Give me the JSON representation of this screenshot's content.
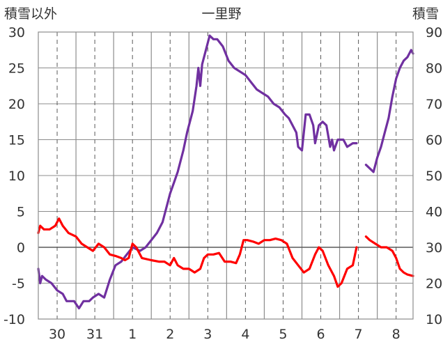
{
  "chart_data": {
    "type": "line",
    "title": "一里野",
    "left_axis_label": "積雪以外",
    "right_axis_label": "積雪",
    "left_axis": {
      "min": -10,
      "max": 30,
      "step": 5,
      "ticks": [
        "-10",
        "-5",
        "0",
        "5",
        "10",
        "15",
        "20",
        "25",
        "30"
      ]
    },
    "right_axis": {
      "min": 10,
      "max": 90,
      "step": 10,
      "ticks": [
        "10",
        "20",
        "30",
        "40",
        "50",
        "60",
        "70",
        "80",
        "90"
      ]
    },
    "x_axis": {
      "min": -1.5,
      "max": 8.45,
      "ticks": [
        {
          "x": -1,
          "label": "30"
        },
        {
          "x": 0,
          "label": "31"
        },
        {
          "x": 1,
          "label": "1"
        },
        {
          "x": 2,
          "label": "2"
        },
        {
          "x": 3,
          "label": "3"
        },
        {
          "x": 4,
          "label": "4"
        },
        {
          "x": 5,
          "label": "5"
        },
        {
          "x": 6,
          "label": "6"
        },
        {
          "x": 7,
          "label": "7"
        },
        {
          "x": 8,
          "label": "8"
        }
      ],
      "day_boundaries": [
        -0.5,
        0.5,
        1.5,
        2.5,
        3.5,
        4.5,
        5.5,
        6.5,
        7.5
      ]
    },
    "grid": {
      "vertical": "dashed",
      "horizontal": "solid"
    },
    "zero_line": 0,
    "series": [
      {
        "axis": "right",
        "color": "#7030a0",
        "segments": [
          [
            [
              -1.5,
              24
            ],
            [
              -1.45,
              20
            ],
            [
              -1.4,
              22
            ],
            [
              -1.3,
              21
            ],
            [
              -1.15,
              20
            ],
            [
              -1.0,
              18
            ],
            [
              -0.85,
              17
            ],
            [
              -0.75,
              15
            ],
            [
              -0.55,
              15
            ],
            [
              -0.42,
              13
            ],
            [
              -0.3,
              15
            ],
            [
              -0.15,
              15
            ],
            [
              -0.05,
              16
            ],
            [
              0.1,
              17
            ],
            [
              0.25,
              16
            ],
            [
              0.4,
              21
            ],
            [
              0.55,
              25
            ],
            [
              0.7,
              26
            ],
            [
              0.85,
              28
            ],
            [
              1.0,
              30
            ],
            [
              1.2,
              29
            ],
            [
              1.35,
              30
            ],
            [
              1.5,
              32
            ],
            [
              1.65,
              34
            ],
            [
              1.8,
              37
            ],
            [
              2.0,
              45
            ],
            [
              2.1,
              48
            ],
            [
              2.2,
              51
            ],
            [
              2.35,
              57
            ],
            [
              2.45,
              62
            ],
            [
              2.6,
              68
            ],
            [
              2.7,
              75
            ],
            [
              2.75,
              80
            ],
            [
              2.8,
              75
            ],
            [
              2.85,
              81
            ],
            [
              2.95,
              85
            ],
            [
              3.05,
              89
            ],
            [
              3.15,
              88
            ],
            [
              3.25,
              88
            ],
            [
              3.4,
              86
            ],
            [
              3.55,
              82
            ],
            [
              3.7,
              80
            ],
            [
              3.85,
              79
            ],
            [
              4.0,
              78
            ],
            [
              4.15,
              76
            ],
            [
              4.3,
              74
            ],
            [
              4.45,
              73
            ],
            [
              4.6,
              72
            ],
            [
              4.75,
              70
            ],
            [
              4.9,
              69
            ],
            [
              5.05,
              67
            ],
            [
              5.15,
              66
            ],
            [
              5.25,
              64
            ],
            [
              5.35,
              62
            ],
            [
              5.4,
              58
            ],
            [
              5.5,
              57
            ],
            [
              5.55,
              62
            ],
            [
              5.6,
              67
            ],
            [
              5.7,
              67
            ],
            [
              5.8,
              64
            ],
            [
              5.85,
              59
            ],
            [
              5.95,
              64
            ],
            [
              6.05,
              65
            ],
            [
              6.15,
              64
            ],
            [
              6.25,
              58
            ],
            [
              6.3,
              60
            ],
            [
              6.35,
              57
            ],
            [
              6.45,
              60
            ],
            [
              6.6,
              60
            ],
            [
              6.7,
              58
            ],
            [
              6.85,
              59
            ],
            [
              6.95,
              59
            ]
          ],
          [
            [
              7.2,
              53
            ],
            [
              7.3,
              52
            ],
            [
              7.4,
              51
            ],
            [
              7.5,
              55
            ],
            [
              7.6,
              58
            ],
            [
              7.7,
              62
            ],
            [
              7.8,
              66
            ],
            [
              7.9,
              72
            ],
            [
              8.0,
              77
            ],
            [
              8.1,
              80
            ],
            [
              8.2,
              82
            ],
            [
              8.3,
              83
            ],
            [
              8.4,
              85
            ],
            [
              8.45,
              84
            ]
          ]
        ]
      },
      {
        "axis": "left",
        "color": "#ff0000",
        "segments": [
          [
            [
              -1.5,
              2.0
            ],
            [
              -1.45,
              3.0
            ],
            [
              -1.35,
              2.5
            ],
            [
              -1.2,
              2.5
            ],
            [
              -1.05,
              3.0
            ],
            [
              -0.95,
              4.0
            ],
            [
              -0.85,
              3.0
            ],
            [
              -0.7,
              2.0
            ],
            [
              -0.5,
              1.5
            ],
            [
              -0.35,
              0.5
            ],
            [
              -0.2,
              0.0
            ],
            [
              -0.05,
              -0.5
            ],
            [
              0.1,
              0.5
            ],
            [
              0.25,
              0.0
            ],
            [
              0.4,
              -1.0
            ],
            [
              0.55,
              -1.2
            ],
            [
              0.7,
              -1.5
            ],
            [
              0.8,
              -1.8
            ],
            [
              0.9,
              -1.5
            ],
            [
              1.0,
              0.5
            ],
            [
              1.1,
              0.0
            ],
            [
              1.25,
              -1.5
            ],
            [
              1.5,
              -1.8
            ],
            [
              1.7,
              -2.0
            ],
            [
              1.85,
              -2.0
            ],
            [
              2.0,
              -2.5
            ],
            [
              2.1,
              -1.5
            ],
            [
              2.2,
              -2.5
            ],
            [
              2.35,
              -3.0
            ],
            [
              2.5,
              -3.0
            ],
            [
              2.65,
              -3.5
            ],
            [
              2.8,
              -3.0
            ],
            [
              2.9,
              -1.5
            ],
            [
              3.0,
              -1.0
            ],
            [
              3.15,
              -1.0
            ],
            [
              3.3,
              -0.8
            ],
            [
              3.45,
              -2.0
            ],
            [
              3.6,
              -2.0
            ],
            [
              3.75,
              -2.2
            ],
            [
              3.85,
              -1.0
            ],
            [
              3.95,
              1.0
            ],
            [
              4.05,
              1.0
            ],
            [
              4.2,
              0.8
            ],
            [
              4.35,
              0.5
            ],
            [
              4.5,
              1.0
            ],
            [
              4.65,
              1.0
            ],
            [
              4.8,
              1.2
            ],
            [
              4.95,
              1.0
            ],
            [
              5.1,
              0.5
            ],
            [
              5.25,
              -1.5
            ],
            [
              5.4,
              -2.5
            ],
            [
              5.55,
              -3.5
            ],
            [
              5.7,
              -3.0
            ],
            [
              5.85,
              -1.0
            ],
            [
              5.95,
              0.0
            ],
            [
              6.05,
              -0.5
            ],
            [
              6.2,
              -2.5
            ],
            [
              6.35,
              -4.0
            ],
            [
              6.45,
              -5.5
            ],
            [
              6.55,
              -5.0
            ],
            [
              6.7,
              -3.0
            ],
            [
              6.85,
              -2.5
            ],
            [
              6.95,
              0.0
            ]
          ],
          [
            [
              7.2,
              1.5
            ],
            [
              7.3,
              1.0
            ],
            [
              7.45,
              0.5
            ],
            [
              7.6,
              0.0
            ],
            [
              7.75,
              0.0
            ],
            [
              7.9,
              -0.5
            ],
            [
              8.0,
              -1.5
            ],
            [
              8.1,
              -3.0
            ],
            [
              8.2,
              -3.5
            ],
            [
              8.3,
              -3.8
            ],
            [
              8.45,
              -4.0
            ]
          ]
        ]
      }
    ]
  }
}
